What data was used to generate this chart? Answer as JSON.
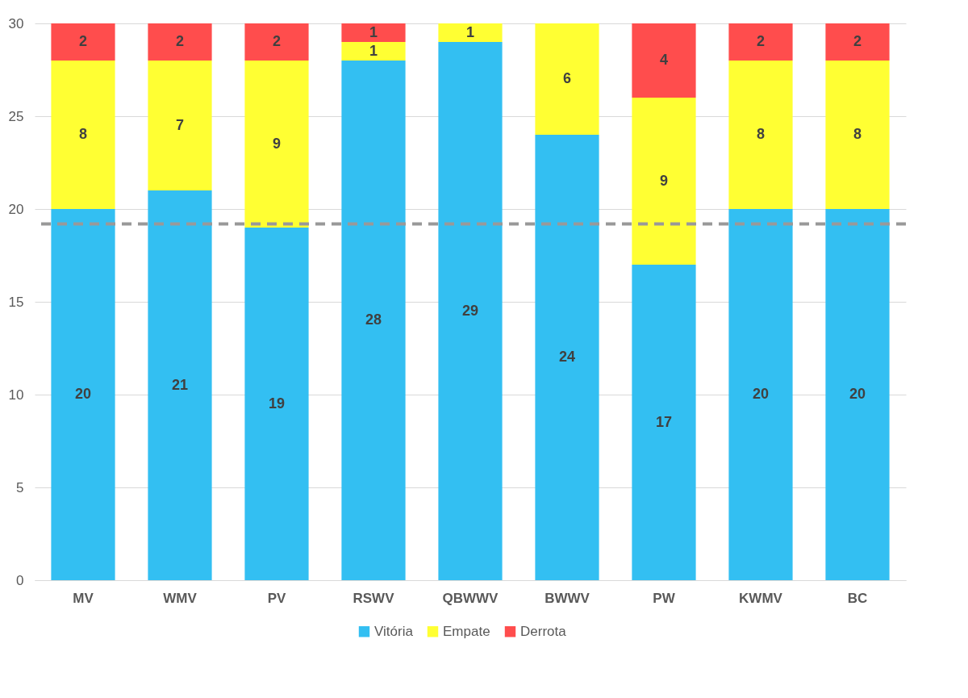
{
  "chart_data": {
    "type": "bar",
    "stacked": true,
    "categories": [
      "MV",
      "WMV",
      "PV",
      "RSWV",
      "QBWWV",
      "BWWV",
      "PW",
      "KWMV",
      "BC"
    ],
    "series": [
      {
        "name": "Vitória",
        "color": "#33bff2",
        "values": [
          20,
          21,
          19,
          28,
          29,
          24,
          17,
          20,
          20
        ]
      },
      {
        "name": "Empate",
        "color": "#ffff33",
        "values": [
          8,
          7,
          9,
          1,
          1,
          6,
          9,
          8,
          8
        ]
      },
      {
        "name": "Derrota",
        "color": "#ff4d4d",
        "values": [
          2,
          2,
          2,
          1,
          null,
          null,
          4,
          2,
          2
        ]
      }
    ],
    "ylim": [
      0,
      30
    ],
    "yticks": [
      0,
      5,
      10,
      15,
      20,
      25,
      30
    ],
    "grid": "y",
    "legend": "bottom",
    "data_labels": true,
    "ref_lines": [
      {
        "axis": "y",
        "value": 19.2,
        "color": "#999999",
        "line_style": "dashed"
      }
    ]
  }
}
